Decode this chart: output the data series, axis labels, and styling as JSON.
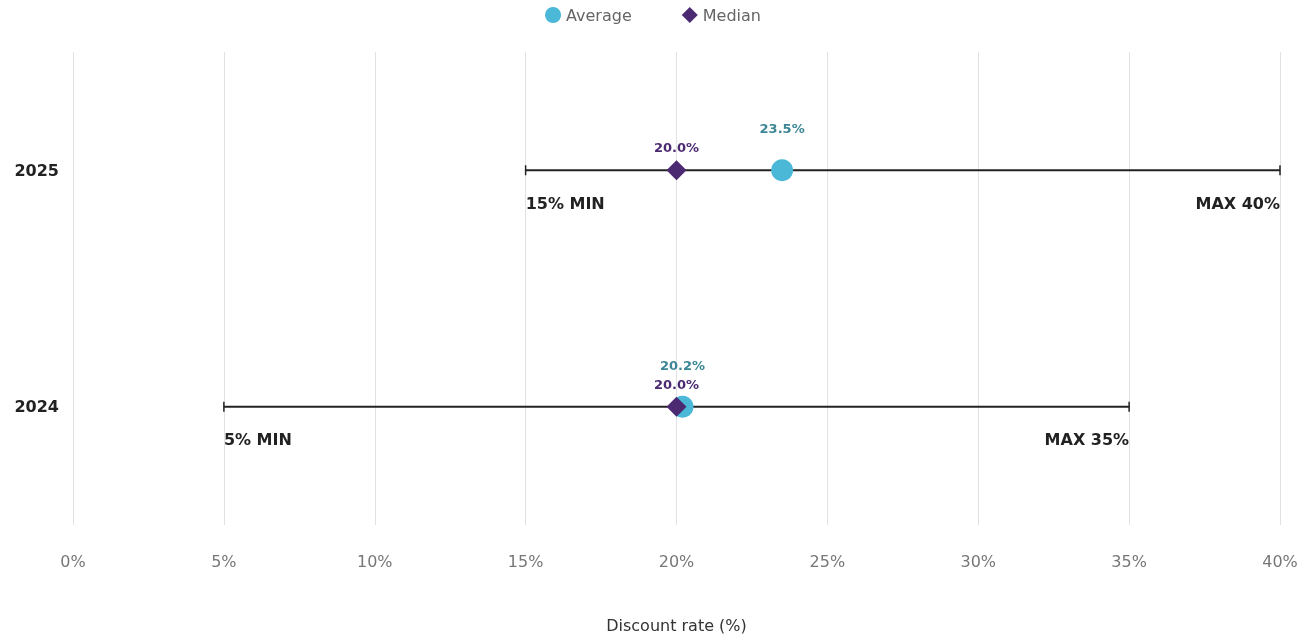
{
  "chart_data": {
    "type": "scatter",
    "orientation": "horizontal",
    "xlabel": "Discount rate (%)",
    "categories": [
      "2025",
      "2024"
    ],
    "xlim": [
      0,
      40
    ],
    "xticks": [
      {
        "value": 0,
        "label": "0%"
      },
      {
        "value": 5,
        "label": "5%"
      },
      {
        "value": 10,
        "label": "10%"
      },
      {
        "value": 15,
        "label": "15%"
      },
      {
        "value": 20,
        "label": "20%"
      },
      {
        "value": 25,
        "label": "25%"
      },
      {
        "value": 30,
        "label": "30%"
      },
      {
        "value": 35,
        "label": "35%"
      },
      {
        "value": 40,
        "label": "40%"
      }
    ],
    "grid": "x",
    "legend": "top",
    "series": [
      {
        "type": "bar",
        "color": "#222222",
        "base": [
          15,
          5
        ],
        "values": [
          25,
          30
        ]
      },
      {
        "name": "Average",
        "color": "#4ab8d6",
        "marker": "circle",
        "values": [
          23.5,
          20.2
        ],
        "value_labels": [
          "23.5%",
          "20.2%"
        ]
      },
      {
        "name": "Median",
        "color": "#4b2a72",
        "marker": "diamond",
        "values": [
          20.0,
          20.0
        ],
        "value_labels": [
          "20.0%",
          "20.0%"
        ]
      }
    ],
    "annotations": [
      "15% MIN",
      "MAX 40%",
      "5% MIN",
      "MAX 35%"
    ]
  }
}
